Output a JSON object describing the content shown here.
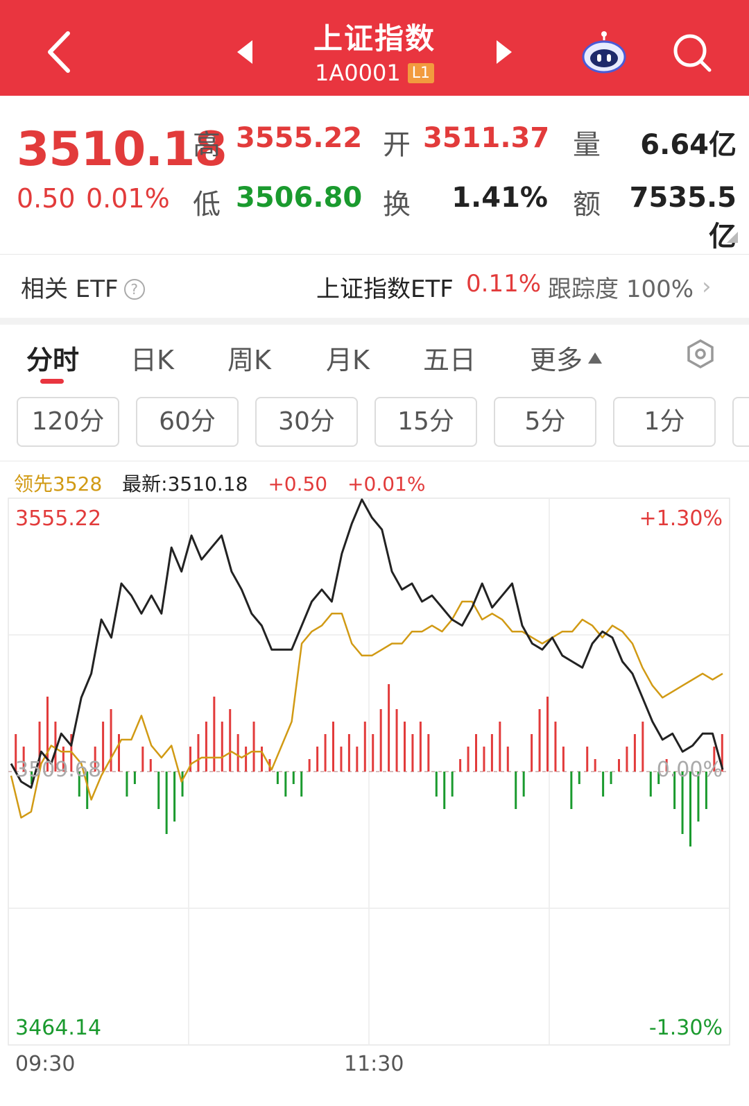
{
  "header": {
    "title": "上证指数",
    "code": "1A0001",
    "badge": "L1"
  },
  "quote": {
    "price": "3510.18",
    "change": "0.50",
    "change_pct": "0.01%",
    "high_label": "高",
    "high": "3555.22",
    "low_label": "低",
    "low": "3506.80",
    "open_label": "开",
    "open": "3511.37",
    "turnover_label": "换",
    "turnover": "1.41%",
    "volume_label": "量",
    "volume": "6.64亿",
    "amount_label": "额",
    "amount": "7535.5亿"
  },
  "etf": {
    "label": "相关 ETF",
    "help": "?",
    "name": "上证指数ETF",
    "pct": "0.11%",
    "tracking_label": "跟踪度",
    "tracking": "100%",
    "arrow": "›"
  },
  "tabs": {
    "items": [
      "分时",
      "日K",
      "周K",
      "月K",
      "五日"
    ],
    "more": "更多",
    "active": "分时"
  },
  "periods": [
    "120分",
    "60分",
    "30分",
    "15分",
    "5分",
    "1分"
  ],
  "legend": {
    "lead": "领先3528",
    "latest": "最新:3510.18",
    "change": "+0.50",
    "change_pct": "+0.01%"
  },
  "colors": {
    "header": "#e9353f",
    "up": "#e23b3b",
    "down": "#1a9a2e",
    "lead_line": "#d19a14",
    "price_line": "#222222"
  },
  "chart_data": {
    "type": "line",
    "y_top_label": "3555.22",
    "y_mid_label": "3509.68",
    "y_bottom_label": "3464.14",
    "pct_top_label": "+1.30%",
    "pct_mid_label": "0.00%",
    "pct_bottom_label": "-1.30%",
    "time_labels": [
      "09:30",
      "11:30"
    ],
    "ylim": [
      3464.14,
      3555.22
    ],
    "prev_close": 3509.68,
    "price_series": [
      3511,
      3508,
      3507,
      3513,
      3511,
      3516,
      3514,
      3522,
      3526,
      3535,
      3532,
      3541,
      3539,
      3536,
      3539,
      3536,
      3547,
      3543,
      3549,
      3545,
      3547,
      3549,
      3543,
      3540,
      3536,
      3534,
      3530,
      3530,
      3530,
      3534,
      3538,
      3540,
      3538,
      3546,
      3551,
      3555,
      3552,
      3550,
      3543,
      3540,
      3541,
      3538,
      3539,
      3537,
      3535,
      3534,
      3537,
      3541,
      3537,
      3539,
      3541,
      3534,
      3531,
      3530,
      3532,
      3529,
      3528,
      3527,
      3531,
      3533,
      3532,
      3528,
      3526,
      3522,
      3518,
      3515,
      3516,
      3513,
      3514,
      3516,
      3516,
      3510
    ],
    "lead_series": [
      3509,
      3502,
      3503,
      3511,
      3514,
      3513,
      3513,
      3511,
      3505,
      3509,
      3512,
      3515,
      3515,
      3519,
      3514,
      3512,
      3514,
      3508,
      3511,
      3512,
      3512,
      3512,
      3513,
      3512,
      3513,
      3513,
      3510,
      3514,
      3518,
      3531,
      3533,
      3534,
      3536,
      3536,
      3531,
      3529,
      3529,
      3530,
      3531,
      3531,
      3533,
      3533,
      3534,
      3533,
      3535,
      3538,
      3538,
      3535,
      3536,
      3535,
      3533,
      3533,
      3532,
      3531,
      3532,
      3533,
      3533,
      3535,
      3534,
      3532,
      3534,
      3533,
      3531,
      3527,
      3524,
      3522,
      3523,
      3524,
      3525,
      3526,
      3525,
      3526
    ],
    "volume_bars": [
      3,
      2,
      -1,
      4,
      6,
      4,
      2,
      3,
      -2,
      -3,
      2,
      4,
      5,
      3,
      -2,
      -1,
      2,
      1,
      -3,
      -5,
      -4,
      -2,
      2,
      3,
      4,
      6,
      4,
      5,
      3,
      2,
      4,
      2,
      1,
      -1,
      -2,
      -1,
      -2,
      1,
      2,
      3,
      4,
      2,
      3,
      2,
      4,
      3,
      5,
      7,
      5,
      4,
      3,
      4,
      3,
      -2,
      -3,
      -2,
      1,
      2,
      3,
      2,
      3,
      4,
      2,
      -3,
      -2,
      3,
      5,
      6,
      4,
      2,
      -3,
      -1,
      2,
      1,
      -2,
      -1,
      1,
      2,
      3,
      4,
      -2,
      -1,
      1,
      -3,
      -5,
      -6,
      -4,
      -3,
      2,
      3
    ]
  }
}
